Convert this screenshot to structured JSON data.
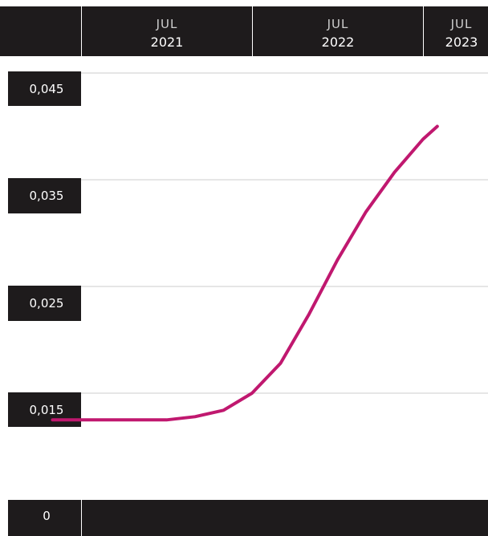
{
  "chart_data": {
    "type": "line",
    "title": "",
    "xlabel": "",
    "ylabel": "",
    "x_ticks": [
      {
        "month": "JUL",
        "year": "2021"
      },
      {
        "month": "JUL",
        "year": "2022"
      },
      {
        "month": "JUL",
        "year": "2023"
      }
    ],
    "y_ticks": [
      "0,045",
      "0,035",
      "0,025",
      "0,015",
      "0"
    ],
    "series": [
      {
        "color": "#c0186f",
        "points": [
          {
            "x": "2021-05",
            "y": 0.0125
          },
          {
            "x": "2022-01",
            "y": 0.0125
          },
          {
            "x": "2022-03",
            "y": 0.0128
          },
          {
            "x": "2022-05",
            "y": 0.0134
          },
          {
            "x": "2022-07",
            "y": 0.015
          },
          {
            "x": "2022-09",
            "y": 0.0178
          },
          {
            "x": "2022-11",
            "y": 0.0224
          },
          {
            "x": "2023-01",
            "y": 0.0275
          },
          {
            "x": "2023-03",
            "y": 0.032
          },
          {
            "x": "2023-05",
            "y": 0.0357
          },
          {
            "x": "2023-07",
            "y": 0.0388
          },
          {
            "x": "2023-08",
            "y": 0.04
          }
        ]
      }
    ],
    "colors": {
      "band": "#1e1b1c",
      "gridline": "#cccccc",
      "line": "#c0186f"
    }
  }
}
